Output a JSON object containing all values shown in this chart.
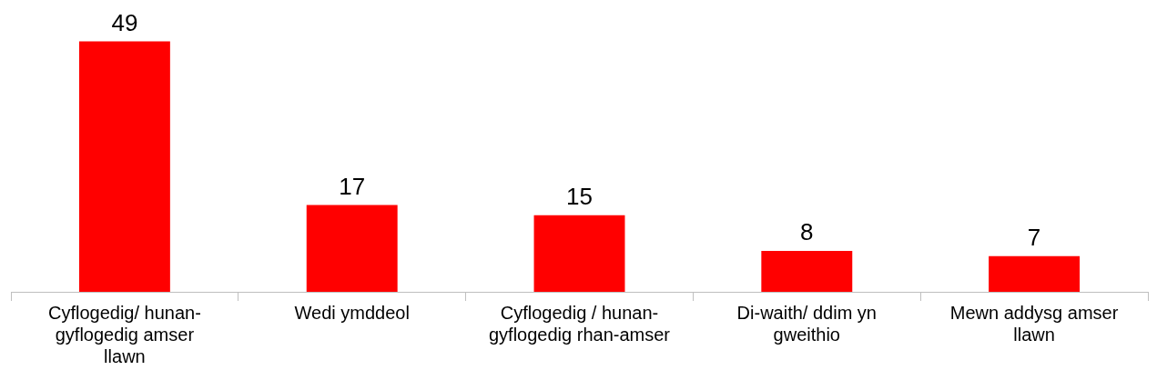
{
  "chart_data": {
    "type": "bar",
    "categories": [
      "Cyflogedig/ hunan-gyflogedig amser llawn",
      "Wedi ymddeol",
      "Cyflogedig / hunan-gyflogedig rhan-amser",
      "Di-waith/ ddim yn gweithio",
      "Mewn addysg amser llawn"
    ],
    "values": [
      49,
      17,
      15,
      8,
      7
    ],
    "color": "#ff0000",
    "data_labels": true,
    "grid": false,
    "legend": false,
    "tick_labels": "x"
  }
}
